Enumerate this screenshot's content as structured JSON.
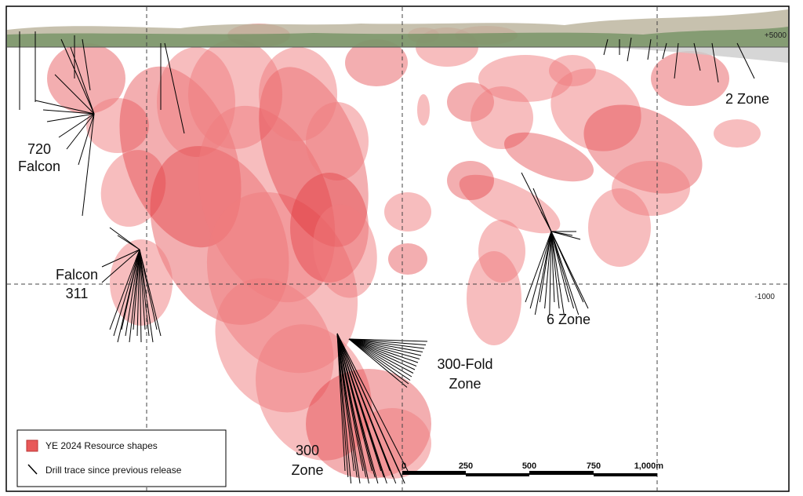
{
  "elevations": {
    "top": "+5000",
    "mid": "-1000"
  },
  "zones": [
    {
      "lines": [
        "720",
        "Falcon"
      ]
    },
    {
      "lines": [
        "Falcon",
        "311"
      ]
    },
    {
      "lines": [
        "300",
        "Zone"
      ]
    },
    {
      "lines": [
        "300-Fold",
        "Zone"
      ]
    },
    {
      "lines": [
        "6 Zone"
      ]
    },
    {
      "lines": [
        "2 Zone"
      ]
    }
  ],
  "legend": {
    "items": [
      "YE 2024 Resource shapes",
      "Drill trace since previous release"
    ]
  },
  "scale_bar": {
    "labels": [
      "0",
      "250",
      "500",
      "750",
      "1,000m"
    ]
  }
}
